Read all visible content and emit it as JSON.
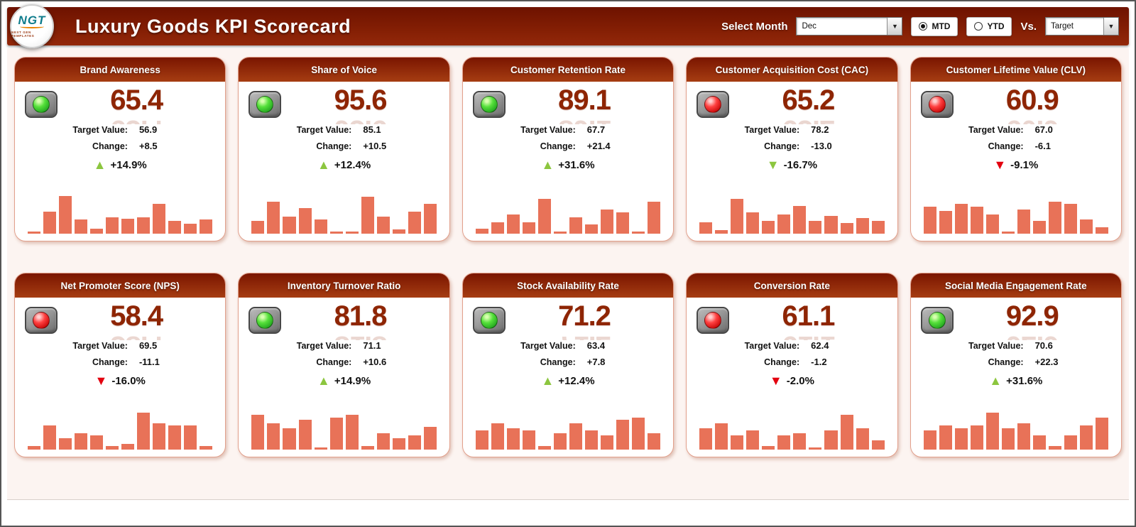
{
  "header": {
    "logo_text": "NGT",
    "logo_tagline": "NEXT GEN TEMPLATES",
    "title": "Luxury Goods KPI Scorecard",
    "select_month_label": "Select Month",
    "month_value": "Dec",
    "mtd_label": "MTD",
    "ytd_label": "YTD",
    "period_selected": "MTD",
    "vs_label": "Vs.",
    "vs_value": "Target",
    "dropdown_arrow": "▼"
  },
  "labels": {
    "target_label": "Target Value:",
    "change_label": "Change:"
  },
  "colors": {
    "header_red_top": "#6E1200",
    "header_red_bottom": "#93280A",
    "card_header_top": "#7A1500",
    "card_header_bottom": "#A63D12",
    "value_color": "#8E2504",
    "bar_color": "#E87258",
    "green": "#8CC63F",
    "red": "#E3000F",
    "content_bg": "#FCF4F1"
  },
  "cards": [
    {
      "title": "Brand Awareness",
      "status": "green",
      "value": "65.4",
      "target": "56.9",
      "change": "+8.5",
      "pct": "+14.9%",
      "trend": "up",
      "trend_color": "green",
      "bars": [
        4,
        44,
        76,
        28,
        10,
        33,
        30,
        33,
        60,
        26,
        20,
        29
      ]
    },
    {
      "title": "Share of Voice",
      "status": "green",
      "value": "95.6",
      "target": "85.1",
      "change": "+10.5",
      "pct": "+12.4%",
      "trend": "up",
      "trend_color": "green",
      "bars": [
        26,
        64,
        34,
        52,
        29,
        5,
        5,
        74,
        34,
        9,
        44,
        60
      ]
    },
    {
      "title": "Customer Retention Rate",
      "status": "green",
      "value": "89.1",
      "target": "67.7",
      "change": "+21.4",
      "pct": "+31.6%",
      "trend": "up",
      "trend_color": "green",
      "bars": [
        10,
        23,
        39,
        23,
        70,
        5,
        33,
        19,
        49,
        43,
        5,
        64
      ]
    },
    {
      "title": "Customer Acquisition Cost (CAC)",
      "status": "red",
      "value": "65.2",
      "target": "78.2",
      "change": "-13.0",
      "pct": "-16.7%",
      "trend": "down",
      "trend_color": "green",
      "bars": [
        23,
        7,
        70,
        43,
        26,
        39,
        56,
        26,
        36,
        21,
        31,
        26
      ]
    },
    {
      "title": "Customer Lifetime Value (CLV)",
      "status": "red",
      "value": "60.9",
      "target": "67.0",
      "change": "-6.1",
      "pct": "-9.1%",
      "trend": "down",
      "trend_color": "red",
      "bars": [
        54,
        46,
        60,
        54,
        39,
        5,
        49,
        26,
        64,
        60,
        29,
        13
      ]
    },
    {
      "title": "Net Promoter Score (NPS)",
      "status": "red",
      "value": "58.4",
      "target": "69.5",
      "change": "-11.1",
      "pct": "-16.0%",
      "trend": "down",
      "trend_color": "red",
      "bars": [
        7,
        49,
        23,
        33,
        29,
        7,
        11,
        74,
        53,
        49,
        49,
        7
      ]
    },
    {
      "title": "Inventory Turnover Ratio",
      "status": "green",
      "value": "81.8",
      "target": "71.1",
      "change": "+10.6",
      "pct": "+14.9%",
      "trend": "up",
      "trend_color": "green",
      "bars": [
        70,
        53,
        43,
        60,
        5,
        64,
        70,
        7,
        33,
        23,
        29,
        46
      ]
    },
    {
      "title": "Stock Availability Rate",
      "status": "green",
      "value": "71.2",
      "target": "63.4",
      "change": "+7.8",
      "pct": "+12.4%",
      "trend": "up",
      "trend_color": "green",
      "bars": [
        39,
        53,
        43,
        39,
        7,
        33,
        53,
        39,
        29,
        60,
        64,
        33
      ]
    },
    {
      "title": "Conversion Rate",
      "status": "red",
      "value": "61.1",
      "target": "62.4",
      "change": "-1.2",
      "pct": "-2.0%",
      "trend": "down",
      "trend_color": "red",
      "bars": [
        43,
        53,
        29,
        39,
        7,
        29,
        33,
        5,
        39,
        70,
        43,
        19
      ]
    },
    {
      "title": "Social Media Engagement Rate",
      "status": "green",
      "value": "92.9",
      "target": "70.6",
      "change": "+22.3",
      "pct": "+31.6%",
      "trend": "up",
      "trend_color": "green",
      "bars": [
        39,
        49,
        43,
        49,
        74,
        43,
        53,
        29,
        7,
        29,
        49,
        64
      ]
    }
  ]
}
